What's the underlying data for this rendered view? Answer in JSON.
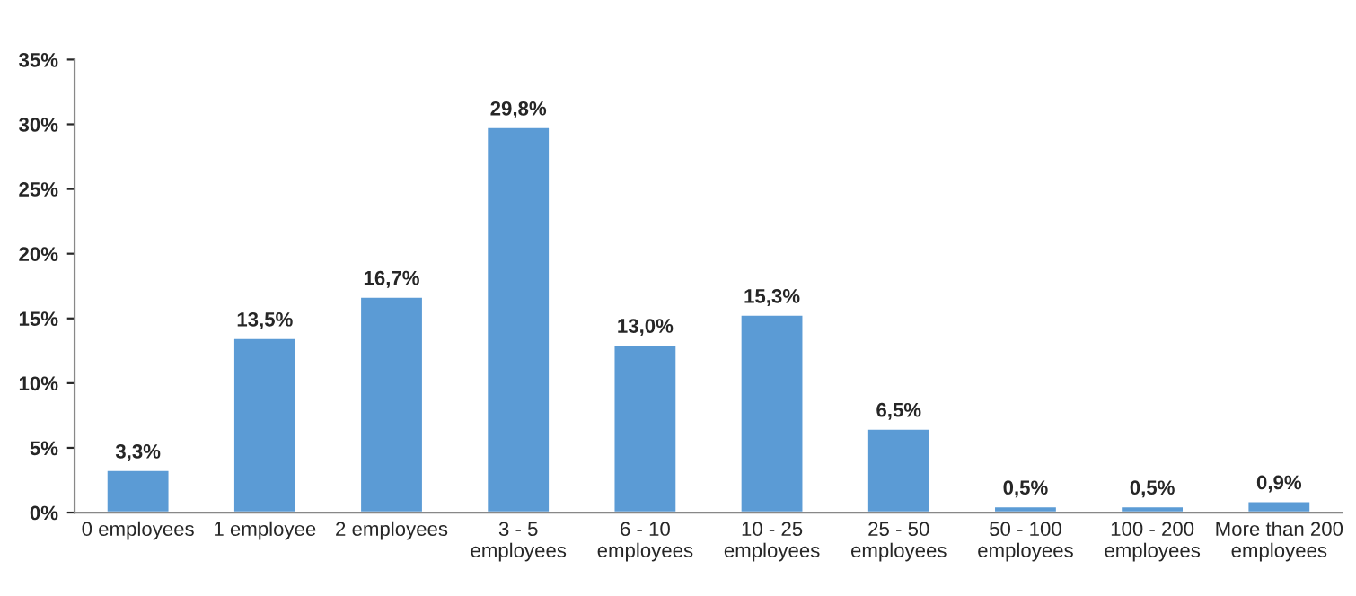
{
  "chart_data": {
    "type": "bar",
    "categories": [
      "0 employees",
      "1 employee",
      "2 employees",
      "3 - 5\nemployees",
      "6 - 10\nemployees",
      "10 - 25\nemployees",
      "25 - 50\nemployees",
      "50 - 100\nemployees",
      "100 - 200\nemployees",
      "More than 200\nemployees"
    ],
    "values": [
      3.3,
      13.5,
      16.7,
      29.8,
      13.0,
      15.3,
      6.5,
      0.5,
      0.5,
      0.9
    ],
    "value_labels": [
      "3,3%",
      "13,5%",
      "16,7%",
      "29,8%",
      "13,0%",
      "15,3%",
      "6,5%",
      "0,5%",
      "0,5%",
      "0,9%"
    ],
    "color": "#5b9bd5",
    "ylim": [
      0,
      35
    ],
    "yticks": [
      {
        "value": 0,
        "label": "0%"
      },
      {
        "value": 5,
        "label": "5%"
      },
      {
        "value": 10,
        "label": "10%"
      },
      {
        "value": 15,
        "label": "15%"
      },
      {
        "value": 20,
        "label": "20%"
      },
      {
        "value": 25,
        "label": "25%"
      },
      {
        "value": 30,
        "label": "30%"
      },
      {
        "value": 35,
        "label": "35%"
      }
    ],
    "grid": false,
    "legend": false
  }
}
